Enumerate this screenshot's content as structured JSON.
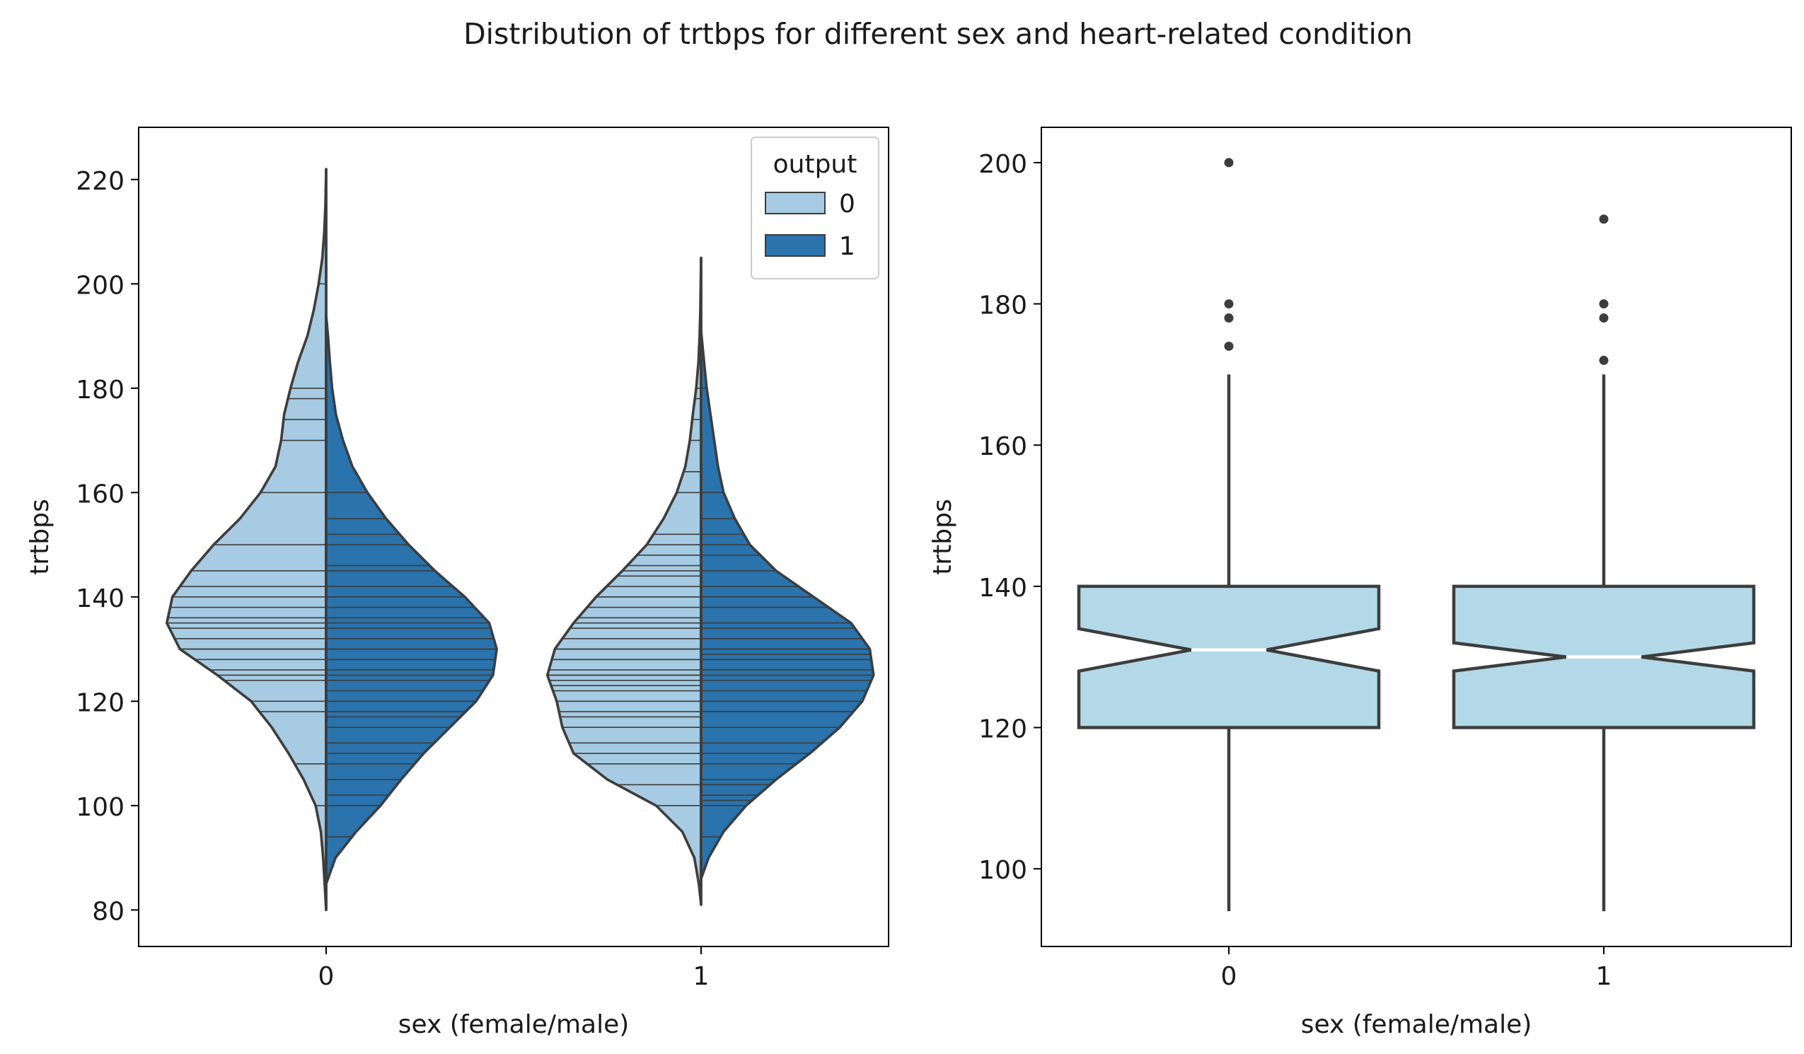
{
  "figure": {
    "title": "Distribution of trtbps for different sex and heart-related condition"
  },
  "colors": {
    "light_blue": "#a6cbe3",
    "dark_blue": "#2a73ac",
    "box_fill": "#b3d9e8",
    "edge": "#3d3d3d",
    "median_line": "#ffffff"
  },
  "chart_data": [
    {
      "type": "violin",
      "split": true,
      "inner": "stick",
      "xlabel": "sex (female/male)",
      "ylabel": "trtbps",
      "categories": [
        "0",
        "1"
      ],
      "ylim": [
        73,
        230
      ],
      "yticks": [
        80,
        100,
        120,
        140,
        160,
        180,
        200,
        220
      ],
      "legend": {
        "title": "output",
        "location": "top-right",
        "entries": [
          "0",
          "1"
        ]
      },
      "series": [
        {
          "name": "0",
          "side": "left",
          "color": "#a6cbe3",
          "groups": [
            {
              "category": "0",
              "density": [
                [
                  80,
                  0.0
                ],
                [
                  85,
                  0.004
                ],
                [
                  90,
                  0.008
                ],
                [
                  95,
                  0.014
                ],
                [
                  100,
                  0.028
                ],
                [
                  105,
                  0.06
                ],
                [
                  110,
                  0.1
                ],
                [
                  115,
                  0.145
                ],
                [
                  120,
                  0.2
                ],
                [
                  125,
                  0.29
                ],
                [
                  130,
                  0.39
                ],
                [
                  135,
                  0.425
                ],
                [
                  140,
                  0.41
                ],
                [
                  145,
                  0.36
                ],
                [
                  150,
                  0.3
                ],
                [
                  155,
                  0.23
                ],
                [
                  160,
                  0.175
                ],
                [
                  165,
                  0.135
                ],
                [
                  170,
                  0.12
                ],
                [
                  175,
                  0.112
                ],
                [
                  180,
                  0.095
                ],
                [
                  185,
                  0.075
                ],
                [
                  190,
                  0.05
                ],
                [
                  195,
                  0.033
                ],
                [
                  200,
                  0.02
                ],
                [
                  205,
                  0.01
                ],
                [
                  210,
                  0.005
                ],
                [
                  215,
                  0.002
                ],
                [
                  222,
                  0.0
                ]
              ],
              "sticks": [
                100,
                108,
                118,
                120,
                124,
                125,
                126,
                128,
                130,
                130,
                132,
                134,
                135,
                136,
                138,
                140,
                142,
                145,
                150,
                160,
                170,
                174,
                178,
                180,
                200
              ]
            },
            {
              "category": "1",
              "density": [
                [
                  81,
                  0.0
                ],
                [
                  85,
                  0.006
                ],
                [
                  90,
                  0.018
                ],
                [
                  95,
                  0.05
                ],
                [
                  100,
                  0.12
                ],
                [
                  105,
                  0.25
                ],
                [
                  110,
                  0.34
                ],
                [
                  115,
                  0.37
                ],
                [
                  120,
                  0.385
                ],
                [
                  125,
                  0.41
                ],
                [
                  130,
                  0.39
                ],
                [
                  135,
                  0.34
                ],
                [
                  140,
                  0.28
                ],
                [
                  145,
                  0.21
                ],
                [
                  150,
                  0.145
                ],
                [
                  155,
                  0.1
                ],
                [
                  160,
                  0.065
                ],
                [
                  165,
                  0.042
                ],
                [
                  170,
                  0.03
                ],
                [
                  175,
                  0.022
                ],
                [
                  180,
                  0.013
                ],
                [
                  185,
                  0.007
                ],
                [
                  190,
                  0.004
                ],
                [
                  195,
                  0.002
                ],
                [
                  200,
                  0.001
                ],
                [
                  205,
                  0.0
                ]
              ],
              "sticks": [
                100,
                104,
                108,
                110,
                112,
                115,
                117,
                118,
                120,
                120,
                122,
                123,
                124,
                125,
                125,
                126,
                128,
                128,
                130,
                130,
                132,
                134,
                135,
                136,
                138,
                140,
                140,
                142,
                144,
                145,
                146,
                148,
                150,
                152,
                160,
                164,
                170,
                174,
                178,
                180,
                192
              ]
            }
          ]
        },
        {
          "name": "1",
          "side": "right",
          "color": "#2a73ac",
          "groups": [
            {
              "category": "0",
              "density": [
                [
                  85,
                  0.0
                ],
                [
                  90,
                  0.025
                ],
                [
                  95,
                  0.08
                ],
                [
                  100,
                  0.145
                ],
                [
                  105,
                  0.2
                ],
                [
                  110,
                  0.26
                ],
                [
                  115,
                  0.33
                ],
                [
                  120,
                  0.4
                ],
                [
                  125,
                  0.445
                ],
                [
                  130,
                  0.455
                ],
                [
                  135,
                  0.435
                ],
                [
                  140,
                  0.37
                ],
                [
                  145,
                  0.29
                ],
                [
                  150,
                  0.22
                ],
                [
                  155,
                  0.16
                ],
                [
                  160,
                  0.11
                ],
                [
                  165,
                  0.07
                ],
                [
                  170,
                  0.045
                ],
                [
                  175,
                  0.026
                ],
                [
                  180,
                  0.016
                ],
                [
                  185,
                  0.01
                ],
                [
                  190,
                  0.005
                ],
                [
                  194,
                  0.0
                ]
              ],
              "sticks": [
                94,
                100,
                102,
                105,
                108,
                110,
                112,
                115,
                117,
                118,
                120,
                120,
                122,
                124,
                125,
                126,
                128,
                128,
                130,
                130,
                132,
                134,
                135,
                136,
                138,
                140,
                140,
                142,
                145,
                146,
                150,
                152,
                155,
                160
              ]
            },
            {
              "category": "1",
              "density": [
                [
                  86,
                  0.0
                ],
                [
                  90,
                  0.02
                ],
                [
                  95,
                  0.06
                ],
                [
                  100,
                  0.12
                ],
                [
                  105,
                  0.2
                ],
                [
                  110,
                  0.29
                ],
                [
                  115,
                  0.37
                ],
                [
                  120,
                  0.43
                ],
                [
                  125,
                  0.46
                ],
                [
                  130,
                  0.45
                ],
                [
                  135,
                  0.4
                ],
                [
                  140,
                  0.3
                ],
                [
                  145,
                  0.2
                ],
                [
                  150,
                  0.13
                ],
                [
                  155,
                  0.09
                ],
                [
                  160,
                  0.06
                ],
                [
                  165,
                  0.045
                ],
                [
                  170,
                  0.035
                ],
                [
                  175,
                  0.025
                ],
                [
                  180,
                  0.015
                ],
                [
                  185,
                  0.008
                ],
                [
                  191,
                  0.0
                ]
              ],
              "sticks": [
                94,
                100,
                101,
                102,
                104,
                105,
                108,
                110,
                112,
                115,
                118,
                118,
                120,
                120,
                122,
                124,
                125,
                126,
                128,
                128,
                129,
                130,
                130,
                132,
                134,
                135,
                138,
                140,
                140,
                142,
                145,
                148,
                150,
                152,
                155,
                160,
                180
              ]
            }
          ]
        }
      ]
    },
    {
      "type": "box",
      "notch": true,
      "xlabel": "sex (female/male)",
      "ylabel": "trtbps",
      "categories": [
        "0",
        "1"
      ],
      "ylim": [
        89,
        205
      ],
      "yticks": [
        100,
        120,
        140,
        160,
        180,
        200
      ],
      "boxes": [
        {
          "category": "0",
          "q1": 120,
          "median": 131,
          "q3": 140,
          "notch_low": 128,
          "notch_high": 134,
          "whisker_low": 94,
          "whisker_high": 170,
          "outliers": [
            174,
            178,
            180,
            200
          ]
        },
        {
          "category": "1",
          "q1": 120,
          "median": 130,
          "q3": 140,
          "notch_low": 128,
          "notch_high": 132,
          "whisker_low": 94,
          "whisker_high": 170,
          "outliers": [
            172,
            178,
            180,
            192
          ]
        }
      ]
    }
  ]
}
